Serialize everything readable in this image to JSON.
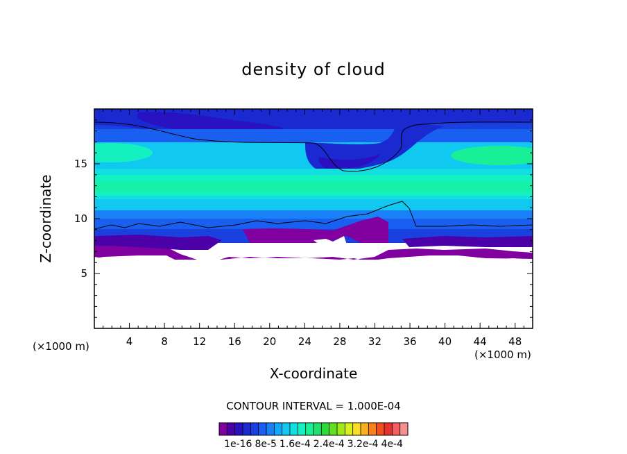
{
  "chart_data": {
    "type": "heatmap",
    "title": "density of cloud",
    "xlabel": "X-coordinate",
    "ylabel": "Z-coordinate",
    "x_unit": "(×1000 m)",
    "xlim": [
      0,
      50
    ],
    "ylim": [
      0,
      20
    ],
    "x_ticks": [
      "4",
      "8",
      "12",
      "16",
      "20",
      "24",
      "28",
      "32",
      "36",
      "40",
      "44",
      "48"
    ],
    "y_ticks": [
      "5",
      "10",
      "15"
    ],
    "contour_interval_text": "CONTOUR INTERVAL = 1.000E-04",
    "colorbar": {
      "colors": [
        "#8000a0",
        "#4b00a8",
        "#2a10c0",
        "#1c2ad0",
        "#1a40e0",
        "#1a60f0",
        "#1a80f8",
        "#12a8f8",
        "#10c8f0",
        "#12e0e0",
        "#14f0c0",
        "#18f098",
        "#20e070",
        "#30d840",
        "#60e020",
        "#a0e818",
        "#d8f020",
        "#f8e020",
        "#f8b020",
        "#f88020",
        "#f05020",
        "#e83030",
        "#f06060",
        "#f89090"
      ],
      "labels": [
        "1e-16",
        "8e-5",
        "1.6e-4",
        "2.4e-4",
        "3.2e-4",
        "4e-4"
      ]
    },
    "field_summary": {
      "cloud_base_km": 6.5,
      "cloud_top_km": 19.5,
      "max_density_band_km": [
        11,
        14
      ],
      "secondary_max_band_km": [
        14.5,
        16.5
      ]
    }
  }
}
